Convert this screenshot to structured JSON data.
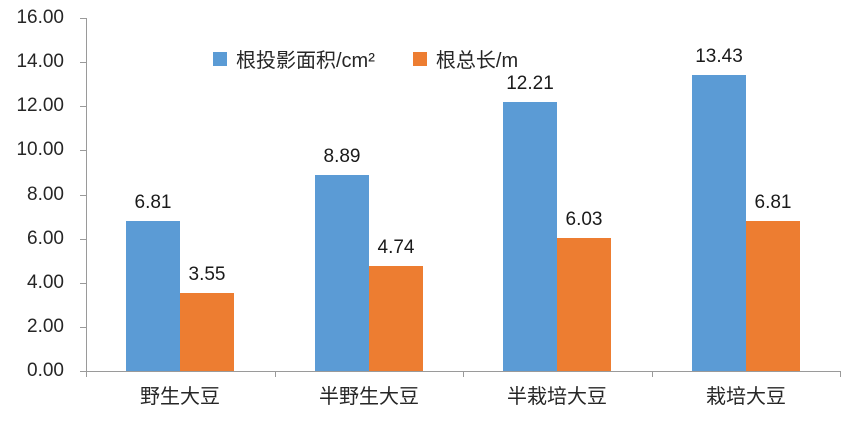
{
  "chart_data": {
    "type": "bar",
    "title": "",
    "xlabel": "",
    "ylabel": "",
    "categories": [
      "野生大豆",
      "半野生大豆",
      "半栽培大豆",
      "栽培大豆"
    ],
    "series": [
      {
        "name": "根投影面积/cm²",
        "color": "#5B9BD5",
        "values": [
          6.81,
          8.89,
          12.21,
          13.43
        ]
      },
      {
        "name": "根总长/m",
        "color": "#ED7D31",
        "values": [
          3.55,
          4.74,
          6.03,
          6.81
        ]
      }
    ],
    "ylim": [
      0,
      16
    ],
    "ytick_step": 2,
    "ytick_labels": [
      "0.00",
      "2.00",
      "4.00",
      "6.00",
      "8.00",
      "10.00",
      "12.00",
      "14.00",
      "16.00"
    ],
    "data_labels": true,
    "data_label_decimals": 2,
    "grid": false,
    "legend_position": "top",
    "axis_color": "#9a9a9a",
    "text_color": "#262626",
    "background_color": "#ffffff"
  }
}
